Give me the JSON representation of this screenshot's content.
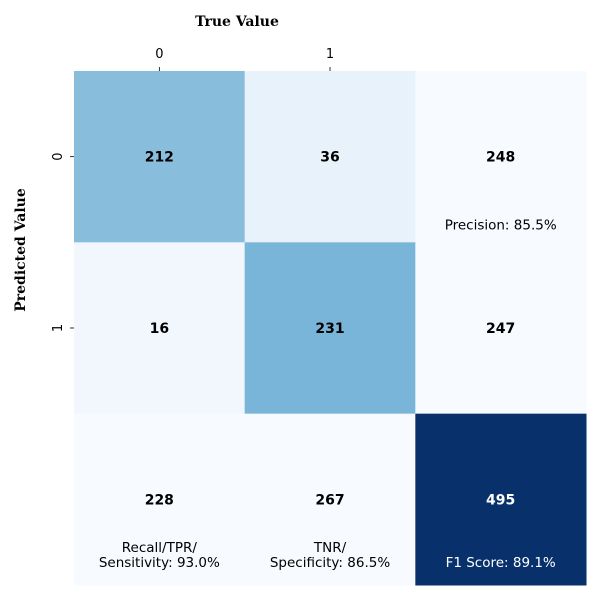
{
  "chart_data": {
    "type": "heatmap",
    "colormap": "Blues",
    "xlabel": "True Value",
    "ylabel": "Predicted Value",
    "x_ticks": [
      "0",
      "1"
    ],
    "y_ticks": [
      "0",
      "1"
    ],
    "x_ticks_position": "top",
    "grid": false,
    "colorbar": false,
    "cells": [
      [
        {
          "value": "212",
          "shade": 212,
          "note": []
        },
        {
          "value": "36",
          "shade": 36,
          "note": []
        },
        {
          "value": "248",
          "shade": 0,
          "note": [
            "Precision: 85.5%"
          ]
        }
      ],
      [
        {
          "value": "16",
          "shade": 16,
          "note": []
        },
        {
          "value": "231",
          "shade": 231,
          "note": []
        },
        {
          "value": "247",
          "shade": 0,
          "note": []
        }
      ],
      [
        {
          "value": "228",
          "shade": 0,
          "note": [
            "Recall/TPR/",
            "Sensitivity: 93.0%"
          ]
        },
        {
          "value": "267",
          "shade": 0,
          "note": [
            "TNR/",
            "Specificity: 86.5%"
          ]
        },
        {
          "value": "495",
          "shade": 495,
          "note": [
            "F1 Score: 89.1%"
          ]
        }
      ]
    ],
    "shade_range": [
      0,
      495
    ]
  }
}
